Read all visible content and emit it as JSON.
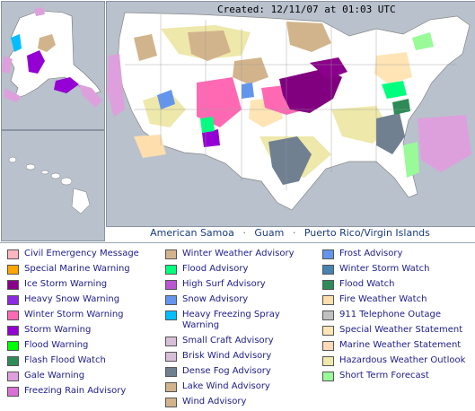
{
  "map": {
    "created_text": "Created: 12/11/07 at 01:03 UTC",
    "territories": [
      "American Samoa",
      "Guam",
      "Puerto Rico/Virgin Islands"
    ],
    "separator": "·"
  },
  "colors": {
    "map_bg": "#b8c1cc",
    "land": "#ffffff",
    "ice_storm": "#80007f",
    "winter_storm_warning": "#ff69b4",
    "winter_weather_advisory": "#d2b48c",
    "hazardous_weather_outlook": "#eee8aa",
    "dense_fog": "#708090",
    "special_weather_statement": "#ffe4b5",
    "fire_weather_watch": "#ffdead",
    "flood_advisory": "#00ff7f",
    "flood_watch": "#2e8b57",
    "snow_advisory": "#6495ed",
    "high_surf": "#ba55d3",
    "short_term_forecast": "#98fb98"
  },
  "legend": {
    "col1": [
      {
        "label": "Civil Emergency Message",
        "color": "#ffb6c1"
      },
      {
        "label": "Special Marine Warning",
        "color": "#ffa500"
      },
      {
        "label": "Ice Storm Warning",
        "color": "#8b008b"
      },
      {
        "label": "Heavy Snow Warning",
        "color": "#8a2be2"
      },
      {
        "label": "Winter Storm Warning",
        "color": "#ff69b4"
      },
      {
        "label": "Storm Warning",
        "color": "#9400d3"
      },
      {
        "label": "Flood Warning",
        "color": "#00ff00"
      },
      {
        "label": "Flash Flood Watch",
        "color": "#2e8b57"
      },
      {
        "label": "Gale Warning",
        "color": "#dda0dd"
      },
      {
        "label": "Freezing Rain Advisory",
        "color": "#da70d6"
      }
    ],
    "col2": [
      {
        "label": "Winter Weather Advisory",
        "color": "#d2b48c"
      },
      {
        "label": "Flood Advisory",
        "color": "#00ff7f"
      },
      {
        "label": "High Surf Advisory",
        "color": "#ba55d3"
      },
      {
        "label": "Snow Advisory",
        "color": "#6495ed"
      },
      {
        "label": "Heavy Freezing Spray Warning",
        "color": "#00bfff",
        "tall": true
      },
      {
        "label": "Small Craft Advisory",
        "color": "#d8bfd8"
      },
      {
        "label": "Brisk Wind Advisory",
        "color": "#d8bfd8"
      },
      {
        "label": "Dense Fog Advisory",
        "color": "#708090"
      },
      {
        "label": "Lake Wind Advisory",
        "color": "#d2b48c"
      },
      {
        "label": "Wind Advisory",
        "color": "#d2b48c"
      }
    ],
    "col3": [
      {
        "label": "Frost Advisory",
        "color": "#6495ed"
      },
      {
        "label": "Winter Storm Watch",
        "color": "#4682b4"
      },
      {
        "label": "Flood Watch",
        "color": "#2e8b57"
      },
      {
        "label": "Fire Weather Watch",
        "color": "#ffdead"
      },
      {
        "label": "911 Telephone Outage",
        "color": "#c0c0c0"
      },
      {
        "label": "Special Weather Statement",
        "color": "#ffe4b5"
      },
      {
        "label": "Marine Weather Statement",
        "color": "#ffdab9"
      },
      {
        "label": "Hazardous Weather Outlook",
        "color": "#eee8aa"
      },
      {
        "label": "Short Term Forecast",
        "color": "#98fb98"
      }
    ]
  }
}
